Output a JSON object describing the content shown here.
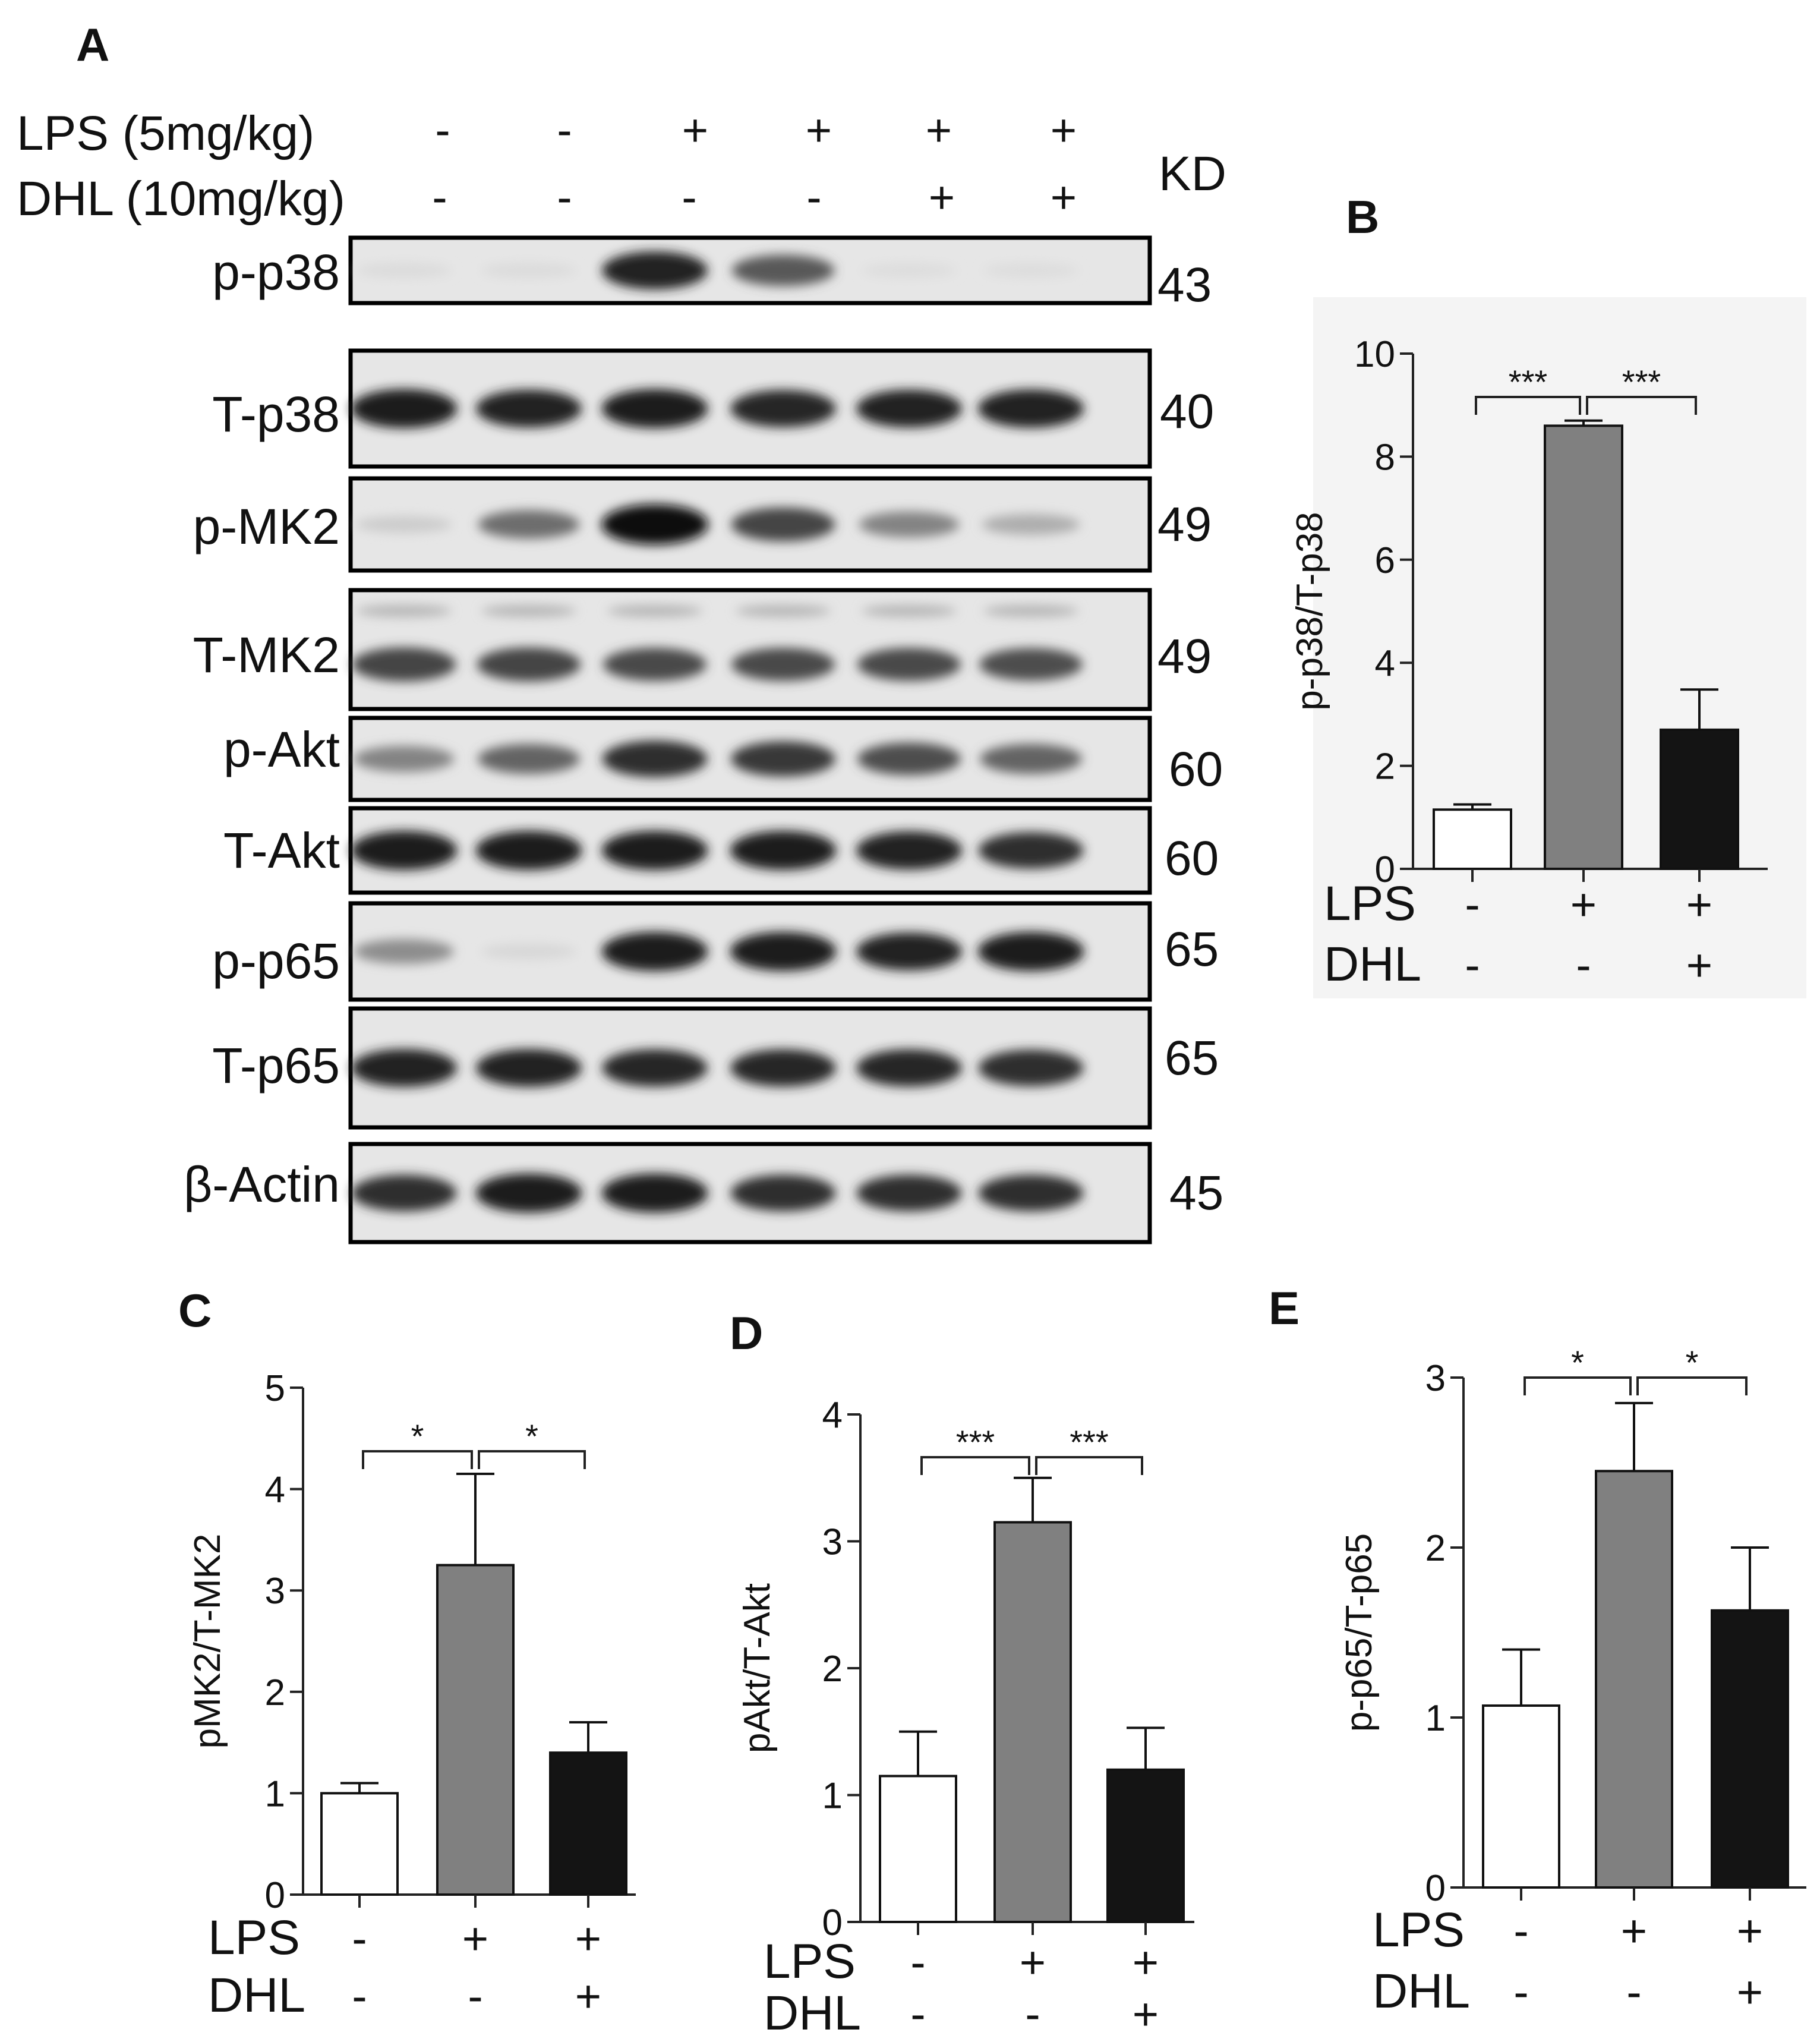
{
  "panel_a": {
    "letter": "A",
    "conditions": [
      {
        "label": "LPS  (5mg/kg)",
        "signs": [
          "-",
          "-",
          "+",
          "+",
          "+",
          "+"
        ]
      },
      {
        "label": "DHL (10mg/kg)",
        "signs": [
          "-",
          "-",
          "-",
          "-",
          "+",
          "+"
        ]
      }
    ],
    "kd_header": "KD",
    "blots": [
      {
        "label": "p-p38",
        "kd": "43",
        "bands": [
          0.03,
          0.03,
          0.9,
          0.65,
          0.02,
          0.02
        ]
      },
      {
        "label": "T-p38",
        "kd": "40",
        "bands": [
          0.95,
          0.9,
          0.95,
          0.88,
          0.9,
          0.92
        ]
      },
      {
        "label": "p-MK2",
        "kd": "49",
        "bands": [
          0.1,
          0.55,
          1.0,
          0.75,
          0.45,
          0.25
        ]
      },
      {
        "label": "T-MK2",
        "kd": "49",
        "bands": [
          0.75,
          0.75,
          0.72,
          0.72,
          0.72,
          0.7
        ]
      },
      {
        "label": "p-Akt",
        "kd": "60",
        "bands": [
          0.45,
          0.6,
          0.85,
          0.8,
          0.7,
          0.6
        ]
      },
      {
        "label": "T-Akt",
        "kd": "60",
        "bands": [
          0.95,
          0.95,
          0.95,
          0.95,
          0.92,
          0.85
        ]
      },
      {
        "label": "p-p65",
        "kd": "65",
        "bands": [
          0.4,
          0.05,
          0.95,
          0.95,
          0.9,
          0.95
        ]
      },
      {
        "label": "T-p65",
        "kd": "65",
        "bands": [
          0.9,
          0.9,
          0.88,
          0.88,
          0.88,
          0.85
        ]
      },
      {
        "label": "β-Actin",
        "kd": "45",
        "bands": [
          0.85,
          0.95,
          0.95,
          0.85,
          0.85,
          0.85
        ]
      }
    ]
  },
  "chart_data": [
    {
      "panel": "B",
      "type": "bar",
      "ylabel": "p-p38/T-p38",
      "ylim": [
        0,
        10
      ],
      "yticks": [
        "0",
        "2",
        "4",
        "6",
        "8",
        "10"
      ],
      "groups": [
        {
          "lps": "-",
          "dhl": "-",
          "value": 1.15,
          "error": 0.1,
          "fill": "#ffffff"
        },
        {
          "lps": "+",
          "dhl": "-",
          "value": 8.6,
          "error": 0.1,
          "fill": "#808080"
        },
        {
          "lps": "+",
          "dhl": "+",
          "value": 2.7,
          "error": 0.78,
          "fill": "#141414"
        }
      ],
      "row_labels": [
        "LPS",
        "DHL"
      ],
      "significance": [
        {
          "from": 0,
          "to": 1,
          "label": "***"
        },
        {
          "from": 1,
          "to": 2,
          "label": "***"
        }
      ]
    },
    {
      "panel": "C",
      "type": "bar",
      "ylabel": "pMK2/T-MK2",
      "ylim": [
        0,
        5
      ],
      "yticks": [
        "0",
        "1",
        "2",
        "3",
        "4",
        "5"
      ],
      "groups": [
        {
          "lps": "-",
          "dhl": "-",
          "value": 1.0,
          "error": 0.1,
          "fill": "#ffffff"
        },
        {
          "lps": "+",
          "dhl": "-",
          "value": 3.25,
          "error": 0.9,
          "fill": "#808080"
        },
        {
          "lps": "+",
          "dhl": "+",
          "value": 1.4,
          "error": 0.3,
          "fill": "#141414"
        }
      ],
      "row_labels": [
        "LPS",
        "DHL"
      ],
      "significance": [
        {
          "from": 0,
          "to": 1,
          "label": "*"
        },
        {
          "from": 1,
          "to": 2,
          "label": "*"
        }
      ]
    },
    {
      "panel": "D",
      "type": "bar",
      "ylabel": "pAkt/T-Akt",
      "ylim": [
        0,
        4
      ],
      "yticks": [
        "0",
        "1",
        "2",
        "3",
        "4"
      ],
      "groups": [
        {
          "lps": "-",
          "dhl": "-",
          "value": 1.15,
          "error": 0.35,
          "fill": "#ffffff"
        },
        {
          "lps": "+",
          "dhl": "-",
          "value": 3.15,
          "error": 0.35,
          "fill": "#808080"
        },
        {
          "lps": "+",
          "dhl": "+",
          "value": 1.2,
          "error": 0.33,
          "fill": "#141414"
        }
      ],
      "row_labels": [
        "LPS",
        "DHL"
      ],
      "significance": [
        {
          "from": 0,
          "to": 1,
          "label": "***"
        },
        {
          "from": 1,
          "to": 2,
          "label": "***"
        }
      ]
    },
    {
      "panel": "E",
      "type": "bar",
      "ylabel": "p-p65/T-p65",
      "ylim": [
        0,
        3
      ],
      "yticks": [
        "0",
        "1",
        "2",
        "3"
      ],
      "groups": [
        {
          "lps": "-",
          "dhl": "-",
          "value": 1.07,
          "error": 0.33,
          "fill": "#ffffff"
        },
        {
          "lps": "+",
          "dhl": "-",
          "value": 2.45,
          "error": 0.4,
          "fill": "#808080"
        },
        {
          "lps": "+",
          "dhl": "+",
          "value": 1.63,
          "error": 0.37,
          "fill": "#141414"
        }
      ],
      "row_labels": [
        "LPS",
        "DHL"
      ],
      "significance": [
        {
          "from": 0,
          "to": 1,
          "label": "*"
        },
        {
          "from": 1,
          "to": 2,
          "label": "*"
        }
      ]
    }
  ]
}
